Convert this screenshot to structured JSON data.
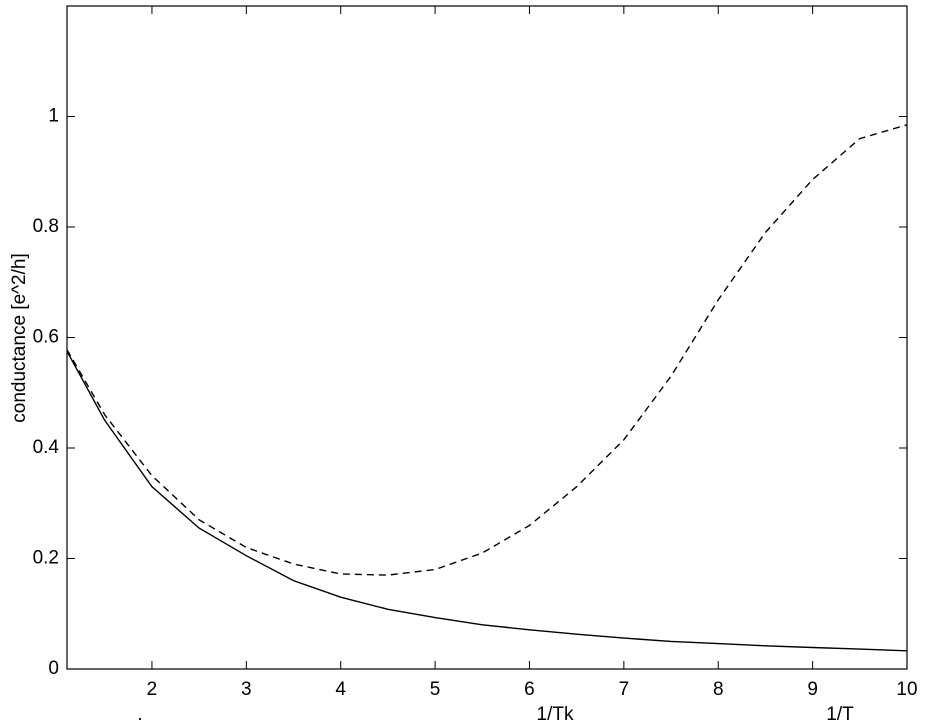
{
  "chart_data": {
    "type": "line",
    "ylabel": "conductance [e^2/h]",
    "annotations": [
      ".",
      "1/Tk",
      "1/T"
    ],
    "x": [
      1.1,
      1.5,
      2,
      2.5,
      3,
      3.5,
      4,
      4.5,
      5,
      5.5,
      6,
      6.5,
      7,
      7.5,
      8,
      8.5,
      9,
      9.5,
      10
    ],
    "series": [
      {
        "color": "#000000",
        "dash": "solid",
        "values": [
          0.575,
          0.45,
          0.33,
          0.255,
          0.205,
          0.16,
          0.13,
          0.108,
          0.093,
          0.08,
          0.071,
          0.063,
          0.056,
          0.05,
          0.046,
          0.042,
          0.039,
          0.036,
          0.033
        ]
      },
      {
        "color": "#000000",
        "dash": "dashed",
        "values": [
          0.578,
          0.46,
          0.35,
          0.27,
          0.22,
          0.19,
          0.172,
          0.17,
          0.18,
          0.21,
          0.26,
          0.33,
          0.415,
          0.53,
          0.668,
          0.79,
          0.886,
          0.96,
          0.985
        ]
      }
    ],
    "xlim": [
      1.1,
      10
    ],
    "xticks": [
      2,
      3,
      4,
      5,
      6,
      7,
      8,
      9,
      10
    ],
    "ylim": [
      0,
      1.2
    ],
    "yticks": [
      0,
      0.2,
      0.4,
      0.6,
      0.8,
      1
    ]
  }
}
